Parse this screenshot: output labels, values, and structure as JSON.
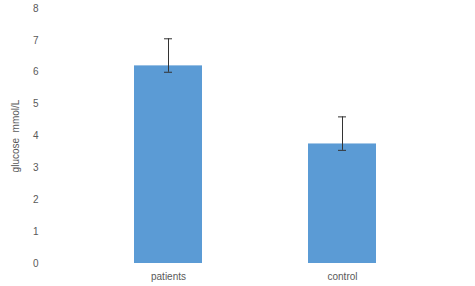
{
  "chart_data": {
    "type": "bar",
    "categories": [
      "patients",
      "control"
    ],
    "values": [
      6.2,
      3.75
    ],
    "error_low": [
      6.0,
      3.55
    ],
    "error_high": [
      7.05,
      4.6
    ],
    "color": "#5b9bd5",
    "ylabel": "glucose  mmol/L",
    "ylim": [
      0,
      8
    ],
    "yticks": [
      0,
      1,
      2,
      3,
      4,
      5,
      6,
      7,
      8
    ],
    "grid": false
  }
}
